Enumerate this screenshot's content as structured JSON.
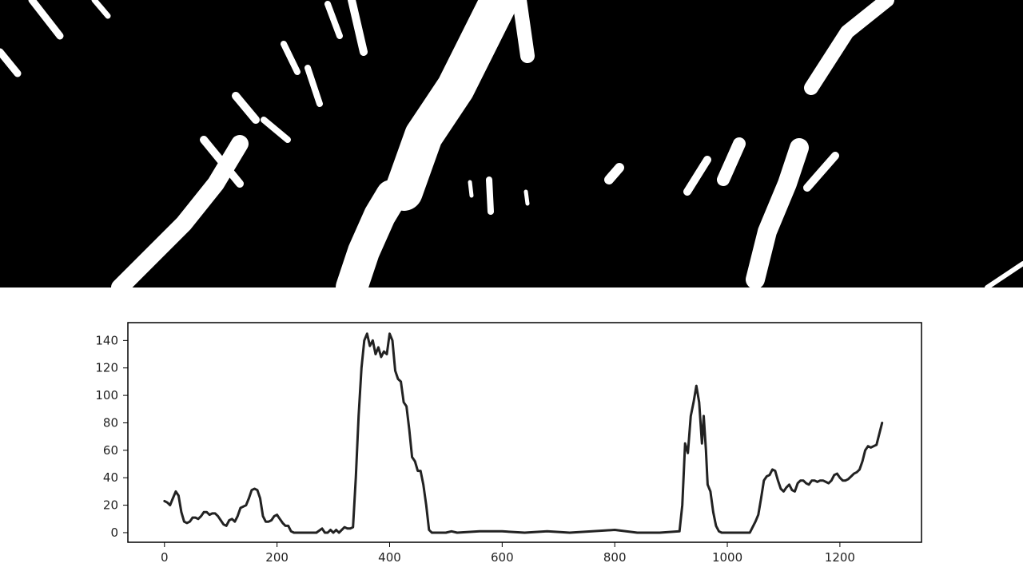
{
  "colors": {
    "image_background": "#000000",
    "image_features": "#ffffff",
    "line": "#222222",
    "frame": "#000000",
    "plot_background": "#ffffff"
  },
  "binary_image": {
    "content": "bird's-eye binary threshold of lane markings (white streaks on black)",
    "strokes": [
      {
        "id": "left-lane",
        "points": [
          [
            150,
            360
          ],
          [
            190,
            320
          ],
          [
            230,
            280
          ],
          [
            270,
            230
          ],
          [
            300,
            180
          ]
        ],
        "width": 22
      },
      {
        "id": "center-lane-upper",
        "points": [
          [
            505,
            240
          ],
          [
            530,
            170
          ],
          [
            570,
            110
          ],
          [
            600,
            50
          ],
          [
            625,
            0
          ]
        ],
        "width": 48
      },
      {
        "id": "center-lane-lower",
        "points": [
          [
            440,
            360
          ],
          [
            455,
            315
          ],
          [
            475,
            270
          ],
          [
            490,
            245
          ]
        ],
        "width": 40
      },
      {
        "id": "center-top-bar",
        "points": [
          [
            650,
            0
          ],
          [
            660,
            70
          ]
        ],
        "width": 18
      },
      {
        "id": "right-lane-upper",
        "points": [
          [
            1015,
            110
          ],
          [
            1060,
            40
          ],
          [
            1110,
            0
          ]
        ],
        "width": 18
      },
      {
        "id": "right-lane-lower",
        "points": [
          [
            945,
            350
          ],
          [
            960,
            290
          ],
          [
            985,
            230
          ],
          [
            1000,
            185
          ]
        ],
        "width": 24
      },
      {
        "id": "right-lane-side",
        "points": [
          [
            1010,
            235
          ],
          [
            1045,
            195
          ]
        ],
        "width": 10
      },
      {
        "id": "right-mid-a",
        "points": [
          [
            860,
            240
          ],
          [
            885,
            200
          ]
        ],
        "width": 10
      },
      {
        "id": "right-mid-b",
        "points": [
          [
            905,
            225
          ],
          [
            925,
            180
          ]
        ],
        "width": 16
      },
      {
        "id": "mid-blob",
        "points": [
          [
            762,
            225
          ],
          [
            775,
            210
          ]
        ],
        "width": 12
      },
      {
        "id": "center-small-a",
        "points": [
          [
            612,
            225
          ],
          [
            614,
            265
          ]
        ],
        "width": 8
      },
      {
        "id": "center-small-b",
        "points": [
          [
            658,
            240
          ],
          [
            660,
            255
          ]
        ],
        "width": 5
      },
      {
        "id": "center-small-c",
        "points": [
          [
            588,
            228
          ],
          [
            590,
            245
          ]
        ],
        "width": 5
      },
      {
        "id": "left-flecks-a",
        "points": [
          [
            355,
            55
          ],
          [
            372,
            90
          ]
        ],
        "width": 8
      },
      {
        "id": "left-flecks-b",
        "points": [
          [
            385,
            85
          ],
          [
            400,
            130
          ]
        ],
        "width": 8
      },
      {
        "id": "left-flecks-c",
        "points": [
          [
            410,
            5
          ],
          [
            425,
            45
          ]
        ],
        "width": 8
      },
      {
        "id": "left-flecks-d",
        "points": [
          [
            440,
            0
          ],
          [
            455,
            65
          ]
        ],
        "width": 10
      },
      {
        "id": "left-flecks-e",
        "points": [
          [
            295,
            120
          ],
          [
            320,
            150
          ]
        ],
        "width": 10
      },
      {
        "id": "left-flecks-f",
        "points": [
          [
            330,
            150
          ],
          [
            360,
            175
          ]
        ],
        "width": 8
      },
      {
        "id": "left-flecks-g",
        "points": [
          [
            255,
            175
          ],
          [
            300,
            230
          ]
        ],
        "width": 10
      },
      {
        "id": "top-left-a",
        "points": [
          [
            40,
            0
          ],
          [
            75,
            45
          ]
        ],
        "width": 9
      },
      {
        "id": "top-left-b",
        "points": [
          [
            0,
            65
          ],
          [
            22,
            92
          ]
        ],
        "width": 9
      },
      {
        "id": "top-left-c",
        "points": [
          [
            118,
            0
          ],
          [
            135,
            20
          ]
        ],
        "width": 7
      },
      {
        "id": "bottom-right-corner",
        "points": [
          [
            1235,
            360
          ],
          [
            1280,
            330
          ]
        ],
        "width": 6
      }
    ]
  },
  "chart_data": {
    "type": "line",
    "title": "",
    "xlabel": "",
    "ylabel": "",
    "xlim": [
      -65,
      1345
    ],
    "ylim": [
      -7,
      153
    ],
    "xticks": [
      0,
      200,
      400,
      600,
      800,
      1000,
      1200
    ],
    "yticks": [
      0,
      20,
      40,
      60,
      80,
      100,
      120,
      140
    ],
    "grid": false,
    "legend": "none",
    "series": [
      {
        "points": [
          [
            0,
            23
          ],
          [
            5,
            22
          ],
          [
            10,
            20
          ],
          [
            15,
            25
          ],
          [
            20,
            30
          ],
          [
            25,
            27
          ],
          [
            30,
            15
          ],
          [
            35,
            8
          ],
          [
            40,
            7
          ],
          [
            45,
            8
          ],
          [
            50,
            11
          ],
          [
            55,
            11
          ],
          [
            60,
            10
          ],
          [
            65,
            12
          ],
          [
            70,
            15
          ],
          [
            75,
            15
          ],
          [
            80,
            13
          ],
          [
            85,
            14
          ],
          [
            90,
            14
          ],
          [
            95,
            12
          ],
          [
            100,
            9
          ],
          [
            105,
            6
          ],
          [
            110,
            5
          ],
          [
            115,
            9
          ],
          [
            120,
            10
          ],
          [
            125,
            8
          ],
          [
            130,
            12
          ],
          [
            135,
            18
          ],
          [
            140,
            19
          ],
          [
            145,
            20
          ],
          [
            150,
            25
          ],
          [
            155,
            31
          ],
          [
            160,
            32
          ],
          [
            165,
            31
          ],
          [
            170,
            25
          ],
          [
            175,
            12
          ],
          [
            180,
            8
          ],
          [
            185,
            8
          ],
          [
            190,
            9
          ],
          [
            195,
            12
          ],
          [
            200,
            13
          ],
          [
            205,
            10
          ],
          [
            210,
            7
          ],
          [
            215,
            5
          ],
          [
            220,
            5
          ],
          [
            225,
            1
          ],
          [
            230,
            0
          ],
          [
            240,
            0
          ],
          [
            250,
            0
          ],
          [
            260,
            0
          ],
          [
            270,
            0
          ],
          [
            280,
            3
          ],
          [
            285,
            0
          ],
          [
            290,
            0
          ],
          [
            295,
            2
          ],
          [
            300,
            0
          ],
          [
            305,
            2
          ],
          [
            310,
            0
          ],
          [
            320,
            4
          ],
          [
            325,
            3
          ],
          [
            330,
            3
          ],
          [
            335,
            4
          ],
          [
            340,
            40
          ],
          [
            345,
            85
          ],
          [
            350,
            120
          ],
          [
            355,
            140
          ],
          [
            360,
            145
          ],
          [
            365,
            136
          ],
          [
            370,
            140
          ],
          [
            375,
            130
          ],
          [
            380,
            135
          ],
          [
            385,
            128
          ],
          [
            390,
            132
          ],
          [
            395,
            130
          ],
          [
            400,
            145
          ],
          [
            405,
            140
          ],
          [
            410,
            118
          ],
          [
            415,
            112
          ],
          [
            420,
            110
          ],
          [
            425,
            95
          ],
          [
            430,
            92
          ],
          [
            435,
            75
          ],
          [
            440,
            55
          ],
          [
            445,
            52
          ],
          [
            450,
            45
          ],
          [
            455,
            45
          ],
          [
            460,
            35
          ],
          [
            465,
            20
          ],
          [
            470,
            2
          ],
          [
            475,
            0
          ],
          [
            500,
            0
          ],
          [
            510,
            1
          ],
          [
            520,
            0
          ],
          [
            560,
            1
          ],
          [
            600,
            1
          ],
          [
            640,
            0
          ],
          [
            680,
            1
          ],
          [
            720,
            0
          ],
          [
            760,
            1
          ],
          [
            800,
            2
          ],
          [
            840,
            0
          ],
          [
            880,
            0
          ],
          [
            915,
            1
          ],
          [
            920,
            20
          ],
          [
            925,
            65
          ],
          [
            930,
            58
          ],
          [
            935,
            85
          ],
          [
            940,
            95
          ],
          [
            945,
            107
          ],
          [
            950,
            95
          ],
          [
            955,
            65
          ],
          [
            958,
            85
          ],
          [
            962,
            60
          ],
          [
            965,
            35
          ],
          [
            970,
            30
          ],
          [
            975,
            15
          ],
          [
            980,
            5
          ],
          [
            985,
            1
          ],
          [
            990,
            0
          ],
          [
            1040,
            0
          ],
          [
            1045,
            4
          ],
          [
            1050,
            8
          ],
          [
            1055,
            13
          ],
          [
            1060,
            25
          ],
          [
            1065,
            38
          ],
          [
            1070,
            41
          ],
          [
            1075,
            42
          ],
          [
            1080,
            46
          ],
          [
            1085,
            45
          ],
          [
            1090,
            38
          ],
          [
            1095,
            32
          ],
          [
            1100,
            30
          ],
          [
            1105,
            33
          ],
          [
            1110,
            35
          ],
          [
            1115,
            31
          ],
          [
            1120,
            30
          ],
          [
            1125,
            36
          ],
          [
            1130,
            38
          ],
          [
            1135,
            38
          ],
          [
            1140,
            36
          ],
          [
            1145,
            35
          ],
          [
            1150,
            38
          ],
          [
            1155,
            38
          ],
          [
            1160,
            37
          ],
          [
            1165,
            38
          ],
          [
            1170,
            38
          ],
          [
            1175,
            37
          ],
          [
            1180,
            36
          ],
          [
            1185,
            38
          ],
          [
            1190,
            42
          ],
          [
            1195,
            43
          ],
          [
            1200,
            40
          ],
          [
            1205,
            38
          ],
          [
            1210,
            38
          ],
          [
            1215,
            39
          ],
          [
            1220,
            41
          ],
          [
            1225,
            43
          ],
          [
            1230,
            44
          ],
          [
            1235,
            46
          ],
          [
            1240,
            52
          ],
          [
            1245,
            60
          ],
          [
            1250,
            63
          ],
          [
            1255,
            62
          ],
          [
            1260,
            63
          ],
          [
            1265,
            64
          ],
          [
            1270,
            72
          ],
          [
            1275,
            80
          ]
        ]
      }
    ]
  }
}
